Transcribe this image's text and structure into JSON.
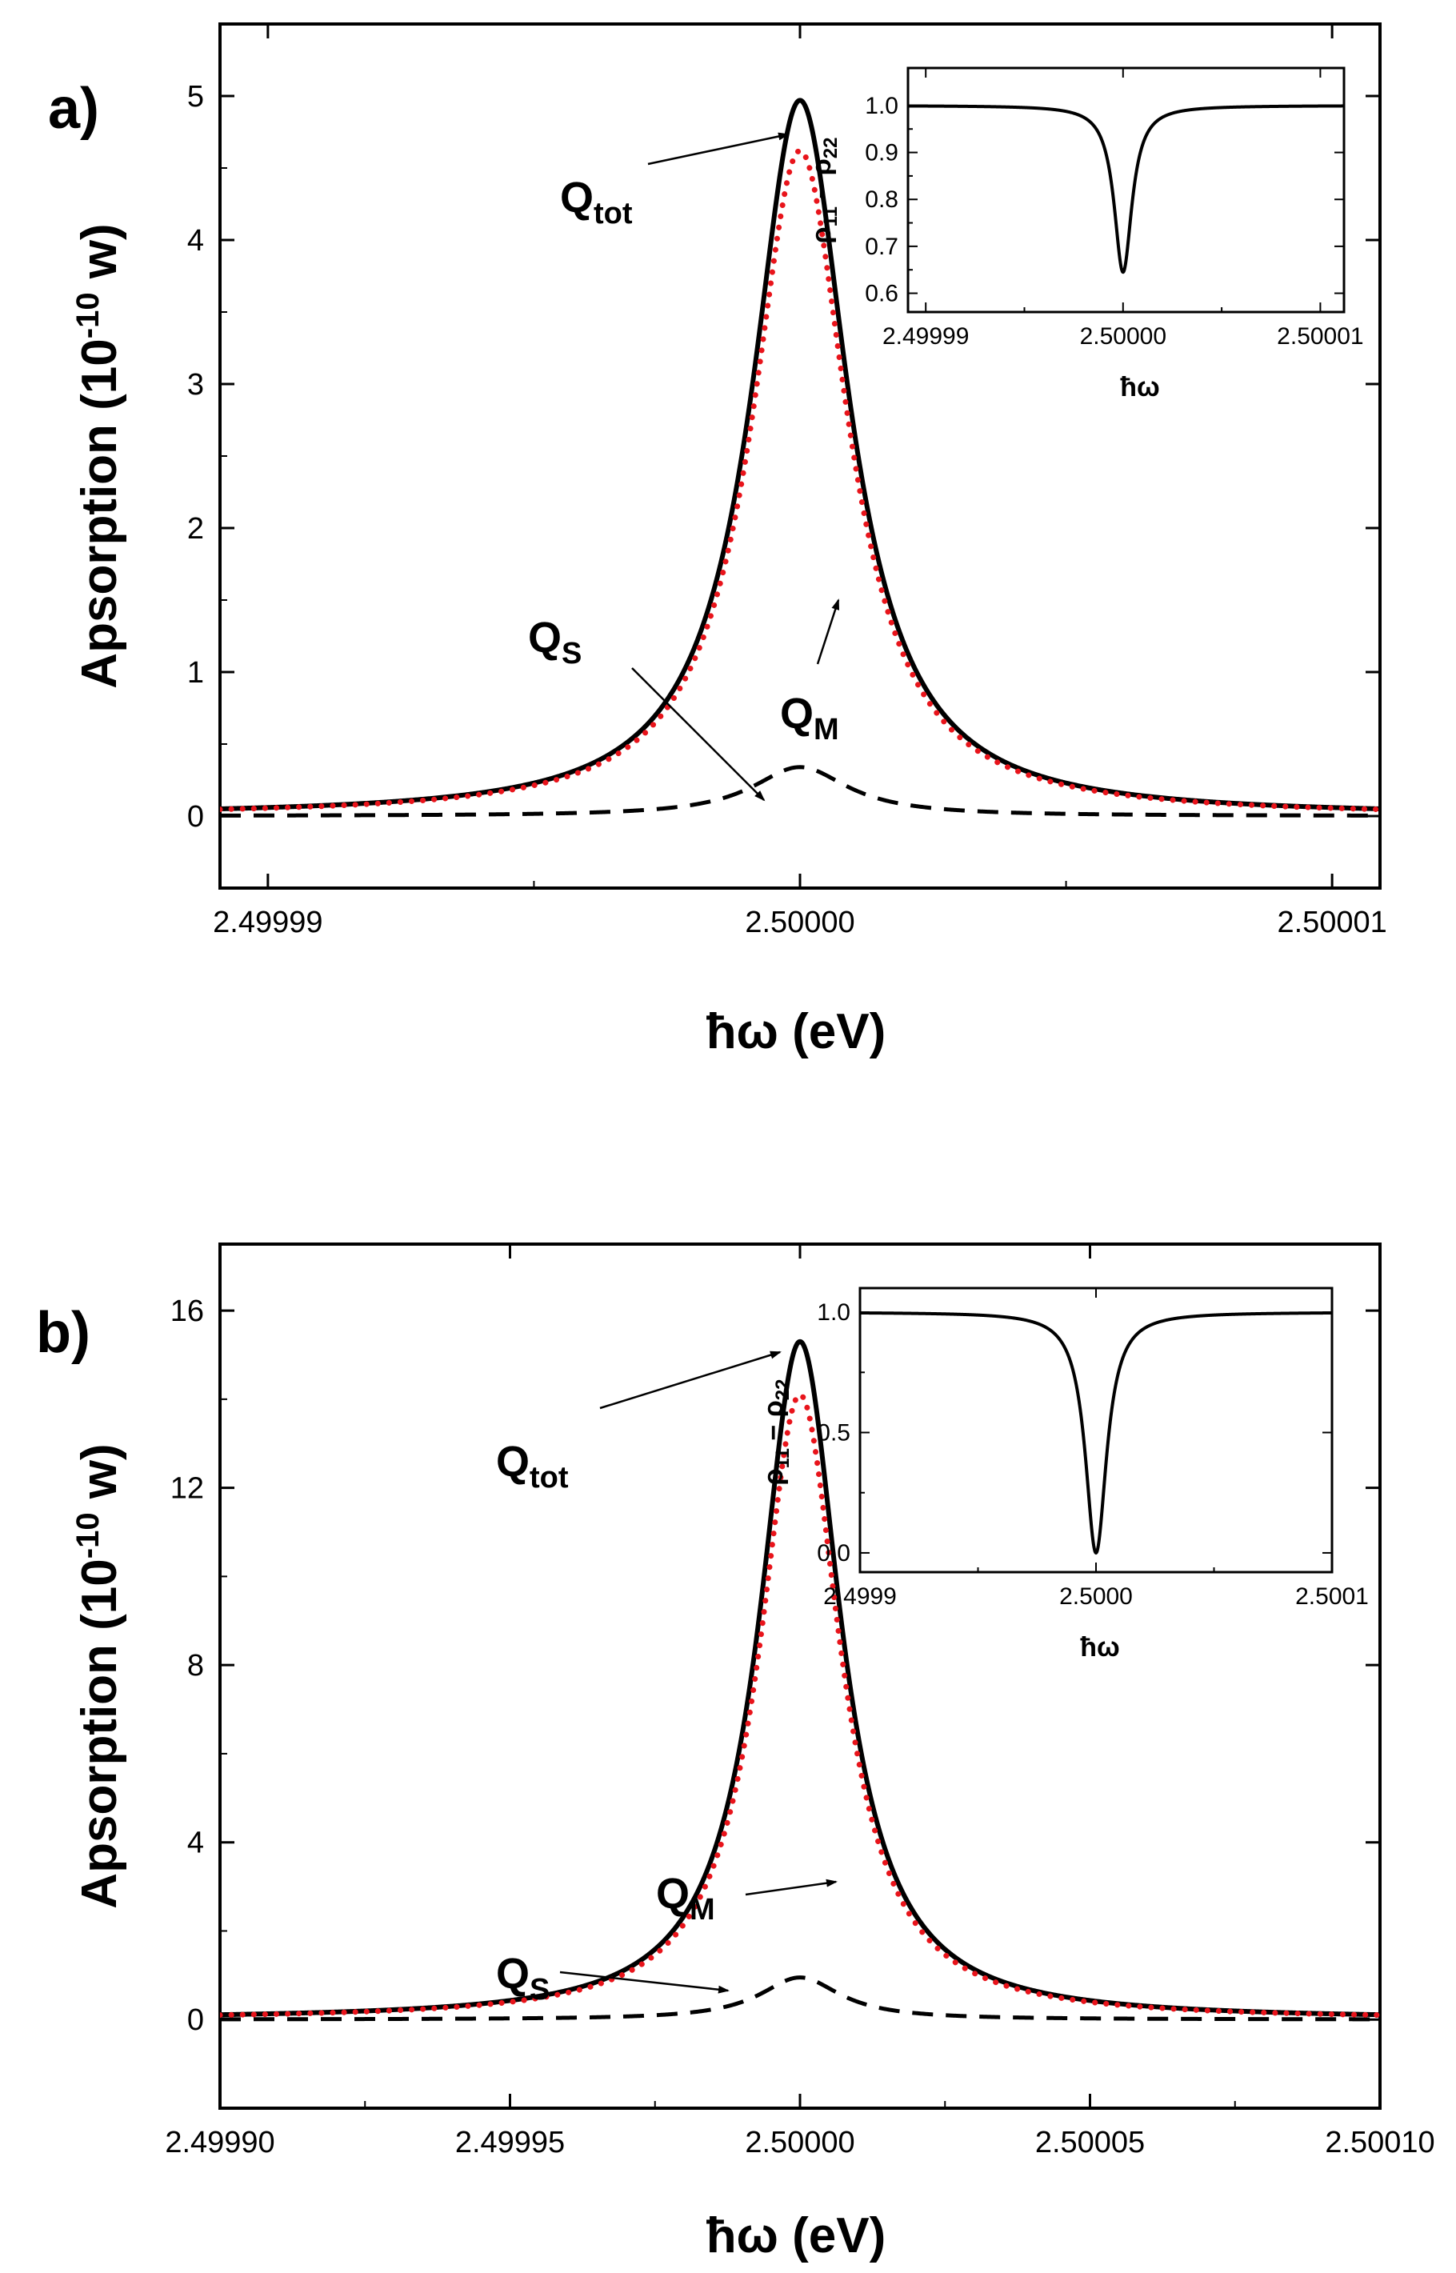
{
  "figure": {
    "colors": {
      "total": "#000000",
      "metal": "#e8141b",
      "semiconductor": "#000000",
      "inset": "#000000"
    }
  },
  "chart_data": [
    {
      "panel": "a)",
      "type": "line",
      "xlabel": "ħω (eV)",
      "ylabel": "Apsorption (10-10 w)",
      "ylabel_parts": {
        "main": "Apsorption (10",
        "exp": "-10",
        "tail": " w)"
      },
      "xlim": [
        2.4999891,
        2.5000109
      ],
      "ylim": [
        -0.5,
        5.5
      ],
      "xticks": [
        2.49999,
        2.5,
        2.50001
      ],
      "xtick_labels": [
        "2.49999",
        "2.50000",
        "2.50001"
      ],
      "yticks": [
        0,
        1,
        2,
        3,
        4,
        5
      ],
      "ytick_labels": [
        "0",
        "1",
        "2",
        "3",
        "4",
        "5"
      ],
      "series": [
        {
          "name": "Q_tot",
          "style": "solid",
          "center": 2.5,
          "amplitude": 4.97,
          "halfwidth": 1.1e-06,
          "offset": 0.0
        },
        {
          "name": "Q_M",
          "style": "dotted",
          "center": 2.5,
          "amplitude": 4.62,
          "halfwidth": 1.1e-06,
          "offset": 0.0
        },
        {
          "name": "Q_S",
          "style": "dashed",
          "center": 2.5,
          "amplitude": 0.34,
          "halfwidth": 1.1e-06,
          "offset": 0.0
        }
      ],
      "annotations": [
        {
          "label": "Q",
          "sub": "tot",
          "target": "Q_tot"
        },
        {
          "label": "Q",
          "sub": "M",
          "target": "Q_M"
        },
        {
          "label": "Q",
          "sub": "S",
          "target": "Q_S"
        }
      ],
      "inset": {
        "type": "line",
        "xlabel": "ħω",
        "ylabel": "ρ11 − ρ22",
        "ylabel_parts": {
          "a": "ρ",
          "a_sub": "11",
          "op": " − ρ",
          "b_sub": "22"
        },
        "xlim": [
          2.4999891,
          2.5000112
        ],
        "ylim": [
          0.56,
          1.08
        ],
        "xticks": [
          2.49999,
          2.5,
          2.50001
        ],
        "xtick_labels": [
          "2.49999",
          "2.50000",
          "2.50001"
        ],
        "yticks": [
          0.6,
          0.7,
          0.8,
          0.9,
          1.0
        ],
        "ytick_labels": [
          "0.6",
          "0.7",
          "0.8",
          "0.9",
          "1.0"
        ],
        "series": [
          {
            "name": "rho11-rho22",
            "style": "solid",
            "center": 2.5,
            "depth": 0.355,
            "halfwidth": 5.5e-07,
            "baseline": 1.0
          }
        ]
      }
    },
    {
      "panel": "b)",
      "type": "line",
      "xlabel": "ħω (eV)",
      "ylabel": "Apsorption (10-10 w)",
      "ylabel_parts": {
        "main": "Apsorption (10",
        "exp": "-10",
        "tail": " w)"
      },
      "xlim": [
        2.4999,
        2.5001
      ],
      "ylim": [
        -2,
        17.5
      ],
      "xticks": [
        2.4999,
        2.49995,
        2.5,
        2.50005,
        2.5001
      ],
      "xtick_labels": [
        "2.49990",
        "2.49995",
        "2.50000",
        "2.50005",
        "2.50010"
      ],
      "yticks": [
        0,
        4,
        8,
        12,
        16
      ],
      "ytick_labels": [
        "0",
        "4",
        "8",
        "12",
        "16"
      ],
      "series": [
        {
          "name": "Q_tot",
          "style": "solid",
          "center": 2.5,
          "amplitude": 15.3,
          "halfwidth": 8.5e-06,
          "offset": 0.0
        },
        {
          "name": "Q_M",
          "style": "dotted",
          "center": 2.5,
          "amplitude": 14.1,
          "halfwidth": 8.5e-06,
          "offset": 0.0
        },
        {
          "name": "Q_S",
          "style": "dashed",
          "center": 2.5,
          "amplitude": 0.95,
          "halfwidth": 8.5e-06,
          "offset": 0.0
        }
      ],
      "annotations": [
        {
          "label": "Q",
          "sub": "tot",
          "target": "Q_tot"
        },
        {
          "label": "Q",
          "sub": "M",
          "target": "Q_M"
        },
        {
          "label": "Q",
          "sub": "S",
          "target": "Q_S"
        }
      ],
      "inset": {
        "type": "line",
        "xlabel": "ħω",
        "ylabel": "ρ11 − ρ22",
        "ylabel_parts": {
          "a": "ρ",
          "a_sub": "11",
          "op": " − ρ",
          "b_sub": "22"
        },
        "xlim": [
          2.4999,
          2.5001
        ],
        "ylim": [
          -0.08,
          1.1
        ],
        "xticks": [
          2.4999,
          2.5,
          2.5001
        ],
        "xtick_labels": [
          "2.4999",
          "2.5000",
          "2.5001"
        ],
        "yticks": [
          0.0,
          0.5,
          1.0
        ],
        "ytick_labels": [
          "0.0",
          "0.5",
          "1.0"
        ],
        "series": [
          {
            "name": "rho11-rho22",
            "style": "solid",
            "center": 2.5,
            "depth": 1.0,
            "halfwidth": 5.5e-06,
            "baseline": 1.0
          }
        ]
      }
    }
  ]
}
